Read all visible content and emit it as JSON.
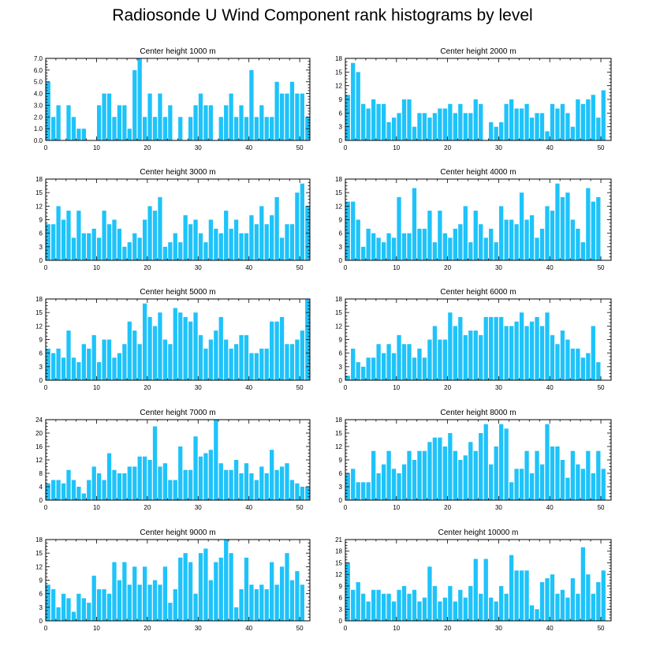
{
  "title": "Radiosonde U Wind Component rank histograms by level",
  "colors": {
    "bar": "#1EC3FA",
    "axis": "#000000",
    "background": "#ffffff"
  },
  "chart_data": [
    {
      "type": "bar",
      "title": "Center height 1000 m",
      "x_ticks": [
        0,
        10,
        20,
        30,
        40,
        50
      ],
      "xlim": [
        0,
        52
      ],
      "y_ticks": [
        "0.0",
        "1.0",
        "2.0",
        "3.0",
        "4.0",
        "5.0",
        "6.0",
        "7.0"
      ],
      "ylim": [
        0,
        7
      ],
      "values": [
        5,
        2,
        3,
        0,
        3,
        2,
        1,
        1,
        0,
        0,
        3,
        4,
        4,
        2,
        3,
        3,
        1,
        6,
        7,
        2,
        4,
        2,
        4,
        2,
        3,
        0,
        2,
        0,
        2,
        3,
        4,
        3,
        3,
        0,
        2,
        3,
        4,
        2,
        3,
        2,
        6,
        2,
        3,
        2,
        2,
        5,
        4,
        4,
        5,
        4,
        4,
        2
      ]
    },
    {
      "type": "bar",
      "title": "Center height 2000 m",
      "x_ticks": [
        0,
        10,
        20,
        30,
        40,
        50
      ],
      "xlim": [
        0,
        52
      ],
      "y_ticks": [
        "0",
        "3",
        "6",
        "9",
        "12",
        "15",
        "18"
      ],
      "ylim": [
        0,
        18
      ],
      "values": [
        10,
        17,
        15,
        8,
        7,
        9,
        8,
        8,
        4,
        5,
        6,
        9,
        9,
        3,
        6,
        6,
        5,
        6,
        7,
        7,
        8,
        6,
        8,
        6,
        6,
        9,
        8,
        0,
        4,
        3,
        4,
        8,
        9,
        7,
        7,
        8,
        5,
        6,
        6,
        2,
        8,
        7,
        8,
        6,
        3,
        9,
        8,
        9,
        10,
        5,
        11,
        0
      ]
    },
    {
      "type": "bar",
      "title": "Center height 3000 m",
      "x_ticks": [
        0,
        10,
        20,
        30,
        40,
        50
      ],
      "xlim": [
        0,
        52
      ],
      "y_ticks": [
        "0",
        "3",
        "6",
        "9",
        "12",
        "15",
        "18"
      ],
      "ylim": [
        0,
        18
      ],
      "values": [
        8,
        8,
        12,
        9,
        11,
        5,
        11,
        6,
        6,
        7,
        5,
        11,
        8,
        9,
        7,
        3,
        4,
        6,
        5,
        9,
        12,
        11,
        14,
        3,
        4,
        6,
        4,
        10,
        8,
        9,
        6,
        4,
        9,
        7,
        6,
        11,
        7,
        9,
        6,
        6,
        10,
        8,
        12,
        8,
        10,
        14,
        5,
        8,
        8,
        15,
        17,
        12
      ]
    },
    {
      "type": "bar",
      "title": "Center height 4000 m",
      "x_ticks": [
        0,
        10,
        20,
        30,
        40,
        50
      ],
      "xlim": [
        0,
        52
      ],
      "y_ticks": [
        "0",
        "3",
        "6",
        "9",
        "12",
        "15",
        "18"
      ],
      "ylim": [
        0,
        18
      ],
      "values": [
        13,
        13,
        9,
        3,
        7,
        6,
        5,
        4,
        6,
        5,
        14,
        6,
        6,
        16,
        7,
        7,
        11,
        4,
        11,
        6,
        5,
        7,
        8,
        12,
        4,
        11,
        8,
        5,
        7,
        4,
        12,
        9,
        9,
        8,
        15,
        9,
        10,
        5,
        7,
        12,
        11,
        17,
        14,
        15,
        9,
        7,
        4,
        16,
        13,
        14,
        0,
        0
      ]
    },
    {
      "type": "bar",
      "title": "Center height 5000 m",
      "x_ticks": [
        0,
        10,
        20,
        30,
        40,
        50
      ],
      "xlim": [
        0,
        52
      ],
      "y_ticks": [
        "0",
        "3",
        "6",
        "9",
        "12",
        "15",
        "18"
      ],
      "ylim": [
        0,
        18
      ],
      "values": [
        7,
        6,
        7,
        5,
        11,
        5,
        4,
        8,
        7,
        10,
        4,
        9,
        9,
        5,
        6,
        8,
        13,
        11,
        8,
        17,
        14,
        12,
        15,
        9,
        8,
        16,
        15,
        14,
        13,
        15,
        10,
        7,
        9,
        11,
        14,
        9,
        7,
        8,
        10,
        10,
        6,
        6,
        7,
        7,
        13,
        13,
        14,
        8,
        8,
        9,
        11,
        18
      ]
    },
    {
      "type": "bar",
      "title": "Center height 6000 m",
      "x_ticks": [
        0,
        10,
        20,
        30,
        40,
        50
      ],
      "xlim": [
        0,
        52
      ],
      "y_ticks": [
        "0",
        "3",
        "6",
        "9",
        "12",
        "15",
        "18"
      ],
      "ylim": [
        0,
        18
      ],
      "values": [
        1,
        7,
        4,
        3,
        5,
        5,
        8,
        6,
        8,
        6,
        10,
        8,
        8,
        5,
        7,
        5,
        9,
        12,
        9,
        9,
        15,
        12,
        14,
        10,
        11,
        11,
        10,
        14,
        14,
        14,
        14,
        12,
        12,
        13,
        15,
        12,
        13,
        14,
        12,
        15,
        10,
        8,
        11,
        9,
        7,
        7,
        5,
        6,
        12,
        4,
        0,
        0
      ]
    },
    {
      "type": "bar",
      "title": "Center height 7000 m",
      "x_ticks": [
        0,
        10,
        20,
        30,
        40,
        50
      ],
      "xlim": [
        0,
        52
      ],
      "y_ticks": [
        "0",
        "4",
        "8",
        "12",
        "16",
        "20",
        "24"
      ],
      "ylim": [
        0,
        24
      ],
      "values": [
        5,
        6,
        6,
        5,
        9,
        6,
        4,
        2,
        6,
        10,
        8,
        6,
        14,
        9,
        8,
        8,
        10,
        10,
        13,
        13,
        12,
        22,
        10,
        11,
        6,
        6,
        16,
        9,
        9,
        19,
        13,
        14,
        15,
        24,
        11,
        9,
        9,
        12,
        8,
        11,
        8,
        6,
        10,
        8,
        15,
        9,
        10,
        11,
        6,
        5,
        4,
        4
      ]
    },
    {
      "type": "bar",
      "title": "Center height 8000 m",
      "x_ticks": [
        0,
        10,
        20,
        30,
        40,
        50
      ],
      "xlim": [
        0,
        52
      ],
      "y_ticks": [
        "0",
        "3",
        "6",
        "9",
        "12",
        "15",
        "18"
      ],
      "ylim": [
        0,
        18
      ],
      "values": [
        6,
        7,
        4,
        4,
        4,
        11,
        6,
        8,
        11,
        7,
        6,
        8,
        11,
        9,
        11,
        11,
        13,
        14,
        14,
        12,
        15,
        11,
        9,
        10,
        13,
        11,
        15,
        17,
        8,
        12,
        17,
        16,
        4,
        7,
        7,
        11,
        6,
        11,
        8,
        17,
        12,
        12,
        9,
        5,
        11,
        8,
        7,
        11,
        6,
        11,
        7,
        0
      ]
    },
    {
      "type": "bar",
      "title": "Center height 9000 m",
      "x_ticks": [
        0,
        10,
        20,
        30,
        40,
        50
      ],
      "xlim": [
        0,
        52
      ],
      "y_ticks": [
        "0",
        "3",
        "6",
        "9",
        "12",
        "15",
        "18"
      ],
      "ylim": [
        0,
        18
      ],
      "values": [
        8,
        7,
        3,
        6,
        5,
        2,
        6,
        5,
        4,
        10,
        7,
        7,
        6,
        13,
        9,
        13,
        8,
        12,
        8,
        12,
        8,
        9,
        8,
        12,
        4,
        7,
        14,
        15,
        13,
        6,
        15,
        16,
        9,
        13,
        14,
        18,
        15,
        3,
        7,
        14,
        8,
        7,
        8,
        7,
        13,
        8,
        12,
        15,
        9,
        11,
        8,
        0
      ]
    },
    {
      "type": "bar",
      "title": "Center height 10000 m",
      "x_ticks": [
        0,
        10,
        20,
        30,
        40,
        50
      ],
      "xlim": [
        0,
        52
      ],
      "y_ticks": [
        "0",
        "3",
        "6",
        "9",
        "12",
        "15",
        "18",
        "21"
      ],
      "ylim": [
        0,
        21
      ],
      "values": [
        15,
        8,
        10,
        7,
        5,
        8,
        8,
        7,
        7,
        5,
        8,
        9,
        7,
        8,
        5,
        6,
        14,
        9,
        5,
        6,
        9,
        5,
        8,
        6,
        9,
        16,
        7,
        16,
        6,
        5,
        9,
        7,
        17,
        13,
        13,
        13,
        4,
        3,
        10,
        11,
        12,
        7,
        8,
        6,
        11,
        7,
        19,
        12,
        7,
        10,
        13,
        0
      ]
    }
  ]
}
